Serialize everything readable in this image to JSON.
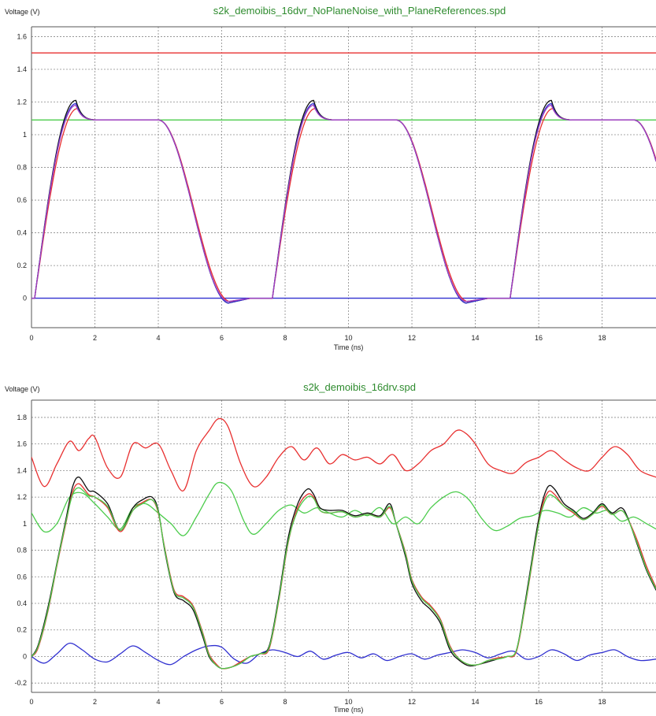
{
  "chart_data": [
    {
      "type": "line",
      "title": "s2k_demoibis_16dvr_NoPlaneNoise_with_PlaneReferences.spd",
      "ylabel": "Voltage (V)",
      "xlabel": "Time (ns)",
      "xlim": [
        0,
        19.7
      ],
      "ylim": [
        -0.18,
        1.66
      ],
      "x_ticks": [
        0,
        2,
        4,
        6,
        8,
        10,
        12,
        14,
        16,
        18
      ],
      "y_ticks": [
        0,
        0.2,
        0.4,
        0.6,
        0.8,
        1,
        1.2,
        1.4,
        1.6
      ],
      "grid": true,
      "series": [
        {
          "color": "#e83030",
          "kind": "flat",
          "level": 1.5
        },
        {
          "color": "#4ccc4c",
          "kind": "flat",
          "level": 1.09
        },
        {
          "color": "#3030d0",
          "kind": "flat",
          "level": 0.0
        },
        {
          "color": "#101010",
          "kind": "pulse",
          "period": 7.5,
          "rise_start": 0.1,
          "peak_t": 1.4,
          "peak": 1.21,
          "high": 1.09,
          "fall_start": 4.0,
          "low_t": 6.2,
          "undershoot": -0.03
        },
        {
          "color": "#e83030",
          "kind": "pulse",
          "period": 7.5,
          "rise_start": 0.1,
          "peak_t": 1.45,
          "peak": 1.16,
          "high": 1.09,
          "fall_start": 4.0,
          "low_t": 6.25,
          "undershoot": -0.02
        },
        {
          "color": "#3030d0",
          "kind": "pulse",
          "period": 7.5,
          "rise_start": 0.1,
          "peak_t": 1.4,
          "peak": 1.19,
          "high": 1.09,
          "fall_start": 4.0,
          "low_t": 6.2,
          "undershoot": -0.03
        },
        {
          "color": "#a040c0",
          "kind": "pulse",
          "period": 7.5,
          "rise_start": 0.1,
          "peak_t": 1.4,
          "peak": 1.18,
          "high": 1.09,
          "fall_start": 4.0,
          "low_t": 6.2,
          "undershoot": -0.02
        }
      ]
    },
    {
      "type": "line",
      "title": "s2k_demoibis_16drv.spd",
      "ylabel": "Voltage (V)",
      "xlabel": "Time (ns)",
      "xlim": [
        0,
        19.7
      ],
      "ylim": [
        -0.27,
        1.93
      ],
      "x_ticks": [
        0,
        2,
        4,
        6,
        8,
        10,
        12,
        14,
        16,
        18
      ],
      "y_ticks": [
        -0.2,
        0,
        0.2,
        0.4,
        0.6,
        0.8,
        1,
        1.2,
        1.4,
        1.6,
        1.8
      ],
      "grid": true,
      "series": [
        {
          "color": "#e83030",
          "kind": "points",
          "x": [
            0,
            0.4,
            0.8,
            1.2,
            1.5,
            1.8,
            2.0,
            2.4,
            2.8,
            3.2,
            3.6,
            4.0,
            4.4,
            4.8,
            5.2,
            5.6,
            5.9,
            6.2,
            6.6,
            7.0,
            7.4,
            7.8,
            8.2,
            8.6,
            9.0,
            9.4,
            9.8,
            10.2,
            10.6,
            11.0,
            11.4,
            11.8,
            12.2,
            12.6,
            13.0,
            13.4,
            13.7,
            14.0,
            14.4,
            14.8,
            15.2,
            15.6,
            16.0,
            16.4,
            16.8,
            17.2,
            17.6,
            18.0,
            18.4,
            18.8,
            19.2,
            19.7
          ],
          "y": [
            1.5,
            1.28,
            1.45,
            1.62,
            1.55,
            1.64,
            1.65,
            1.42,
            1.35,
            1.6,
            1.57,
            1.6,
            1.4,
            1.25,
            1.55,
            1.7,
            1.79,
            1.73,
            1.45,
            1.28,
            1.35,
            1.5,
            1.58,
            1.48,
            1.57,
            1.45,
            1.52,
            1.48,
            1.5,
            1.45,
            1.52,
            1.4,
            1.45,
            1.55,
            1.6,
            1.7,
            1.68,
            1.6,
            1.45,
            1.4,
            1.38,
            1.46,
            1.5,
            1.55,
            1.48,
            1.42,
            1.4,
            1.5,
            1.58,
            1.52,
            1.4,
            1.35
          ]
        },
        {
          "color": "#4ccc4c",
          "kind": "points",
          "x": [
            0,
            0.4,
            0.8,
            1.2,
            1.6,
            2.0,
            2.4,
            2.8,
            3.2,
            3.6,
            4.0,
            4.4,
            4.8,
            5.2,
            5.6,
            5.9,
            6.3,
            6.7,
            7.0,
            7.4,
            7.8,
            8.2,
            8.6,
            9.0,
            9.4,
            9.8,
            10.2,
            10.6,
            11.0,
            11.4,
            11.8,
            12.2,
            12.6,
            13.0,
            13.4,
            13.8,
            14.2,
            14.6,
            15.0,
            15.4,
            15.8,
            16.2,
            16.6,
            17.0,
            17.4,
            17.8,
            18.2,
            18.6,
            19.0,
            19.4,
            19.7
          ],
          "y": [
            1.08,
            0.94,
            1.0,
            1.2,
            1.23,
            1.15,
            1.05,
            0.96,
            1.12,
            1.15,
            1.08,
            1.0,
            0.91,
            1.05,
            1.22,
            1.31,
            1.25,
            1.02,
            0.92,
            1.0,
            1.1,
            1.14,
            1.08,
            1.12,
            1.08,
            1.05,
            1.1,
            1.06,
            1.12,
            1.0,
            1.05,
            1.0,
            1.12,
            1.2,
            1.24,
            1.18,
            1.04,
            0.95,
            0.98,
            1.04,
            1.06,
            1.1,
            1.08,
            1.05,
            1.12,
            1.08,
            1.1,
            1.02,
            1.05,
            1.0,
            0.96
          ]
        },
        {
          "color": "#3030d0",
          "kind": "points",
          "x": [
            0,
            0.4,
            0.8,
            1.2,
            1.6,
            2.0,
            2.4,
            2.8,
            3.2,
            3.6,
            4.0,
            4.4,
            4.8,
            5.2,
            5.6,
            6.0,
            6.4,
            6.8,
            7.2,
            7.6,
            8.0,
            8.4,
            8.8,
            9.2,
            9.6,
            10.0,
            10.4,
            10.8,
            11.2,
            11.6,
            12.0,
            12.4,
            12.8,
            13.2,
            13.6,
            14.0,
            14.4,
            14.8,
            15.2,
            15.6,
            16.0,
            16.4,
            16.8,
            17.2,
            17.6,
            18.0,
            18.4,
            18.8,
            19.2,
            19.7
          ],
          "y": [
            0.0,
            -0.05,
            0.02,
            0.1,
            0.05,
            -0.02,
            -0.04,
            0.02,
            0.08,
            0.03,
            -0.03,
            -0.06,
            0.0,
            0.05,
            0.08,
            0.07,
            -0.02,
            -0.05,
            0.02,
            0.05,
            0.03,
            0.0,
            0.04,
            -0.02,
            0.01,
            0.03,
            -0.01,
            0.02,
            -0.03,
            0.0,
            0.02,
            -0.02,
            0.01,
            0.03,
            0.05,
            0.03,
            -0.01,
            0.02,
            0.04,
            -0.02,
            0.0,
            0.05,
            0.02,
            -0.03,
            0.01,
            0.03,
            0.05,
            0.0,
            -0.03,
            -0.02
          ]
        },
        {
          "color": "#101010",
          "kind": "points",
          "x": [
            0,
            0.2,
            0.5,
            0.8,
            1.1,
            1.3,
            1.5,
            1.8,
            2.0,
            2.4,
            2.8,
            3.2,
            3.5,
            3.8,
            4.0,
            4.2,
            4.5,
            4.8,
            5.1,
            5.4,
            5.6,
            5.8,
            6.0,
            6.3,
            6.6,
            6.9,
            7.2,
            7.5,
            7.8,
            8.1,
            8.4,
            8.7,
            8.9,
            9.1,
            9.4,
            9.8,
            10.2,
            10.6,
            11.0,
            11.3,
            11.5,
            11.8,
            12.0,
            12.3,
            12.6,
            12.9,
            13.2,
            13.5,
            13.8,
            14.1,
            14.4,
            14.7,
            15.0,
            15.3,
            15.6,
            15.9,
            16.1,
            16.3,
            16.5,
            16.8,
            17.1,
            17.4,
            17.7,
            18.0,
            18.3,
            18.6,
            18.8,
            19.1,
            19.4,
            19.7
          ],
          "y": [
            0.0,
            0.08,
            0.35,
            0.7,
            1.05,
            1.28,
            1.35,
            1.25,
            1.24,
            1.15,
            0.95,
            1.12,
            1.18,
            1.2,
            1.1,
            0.8,
            0.48,
            0.42,
            0.35,
            0.15,
            0.0,
            -0.06,
            -0.09,
            -0.08,
            -0.05,
            0.0,
            0.02,
            0.08,
            0.45,
            0.9,
            1.15,
            1.26,
            1.22,
            1.12,
            1.1,
            1.1,
            1.06,
            1.08,
            1.06,
            1.15,
            1.0,
            0.75,
            0.55,
            0.42,
            0.35,
            0.25,
            0.05,
            -0.03,
            -0.07,
            -0.06,
            -0.04,
            -0.02,
            0.0,
            0.05,
            0.45,
            0.9,
            1.15,
            1.28,
            1.26,
            1.15,
            1.1,
            1.04,
            1.08,
            1.15,
            1.08,
            1.12,
            1.05,
            0.85,
            0.65,
            0.5
          ]
        },
        {
          "color": "#e83030",
          "kind": "points",
          "x": [
            0,
            0.2,
            0.5,
            0.8,
            1.1,
            1.3,
            1.5,
            1.8,
            2.0,
            2.4,
            2.8,
            3.2,
            3.5,
            3.8,
            4.0,
            4.2,
            4.5,
            4.8,
            5.1,
            5.4,
            5.6,
            5.8,
            6.0,
            6.3,
            6.6,
            6.9,
            7.2,
            7.5,
            7.8,
            8.1,
            8.4,
            8.7,
            8.9,
            9.1,
            9.4,
            9.8,
            10.2,
            10.6,
            11.0,
            11.3,
            11.5,
            11.8,
            12.0,
            12.3,
            12.6,
            12.9,
            13.2,
            13.5,
            13.8,
            14.1,
            14.4,
            14.7,
            15.0,
            15.3,
            15.6,
            15.9,
            16.1,
            16.3,
            16.5,
            16.8,
            17.1,
            17.4,
            17.7,
            18.0,
            18.3,
            18.6,
            18.8,
            19.1,
            19.4,
            19.7
          ],
          "y": [
            0.0,
            0.06,
            0.32,
            0.68,
            1.02,
            1.24,
            1.3,
            1.22,
            1.2,
            1.12,
            0.94,
            1.1,
            1.16,
            1.18,
            1.08,
            0.82,
            0.5,
            0.45,
            0.38,
            0.18,
            0.02,
            -0.05,
            -0.09,
            -0.08,
            -0.04,
            0.0,
            0.02,
            0.06,
            0.42,
            0.86,
            1.12,
            1.22,
            1.2,
            1.1,
            1.08,
            1.09,
            1.05,
            1.07,
            1.05,
            1.12,
            1.0,
            0.78,
            0.58,
            0.45,
            0.38,
            0.28,
            0.08,
            -0.02,
            -0.06,
            -0.06,
            -0.03,
            -0.01,
            0.0,
            0.04,
            0.42,
            0.86,
            1.12,
            1.24,
            1.22,
            1.13,
            1.08,
            1.03,
            1.07,
            1.13,
            1.07,
            1.1,
            1.04,
            0.88,
            0.68,
            0.52
          ]
        },
        {
          "color": "#4ccc4c",
          "kind": "points",
          "x": [
            0,
            0.2,
            0.5,
            0.8,
            1.1,
            1.3,
            1.5,
            1.8,
            2.0,
            2.4,
            2.8,
            3.2,
            3.5,
            3.8,
            4.0,
            4.2,
            4.5,
            4.8,
            5.1,
            5.4,
            5.6,
            5.8,
            6.0,
            6.3,
            6.6,
            6.9,
            7.2,
            7.5,
            7.8,
            8.1,
            8.4,
            8.7,
            8.9,
            9.1,
            9.4,
            9.8,
            10.2,
            10.6,
            11.0,
            11.3,
            11.5,
            11.8,
            12.0,
            12.3,
            12.6,
            12.9,
            13.2,
            13.5,
            13.8,
            14.1,
            14.4,
            14.7,
            15.0,
            15.3,
            15.6,
            15.9,
            16.1,
            16.3,
            16.5,
            16.8,
            17.1,
            17.4,
            17.7,
            18.0,
            18.3,
            18.6,
            18.8,
            19.1,
            19.4,
            19.7
          ],
          "y": [
            0.0,
            0.07,
            0.33,
            0.69,
            1.03,
            1.22,
            1.27,
            1.21,
            1.2,
            1.13,
            0.95,
            1.1,
            1.15,
            1.18,
            1.09,
            0.81,
            0.49,
            0.44,
            0.37,
            0.17,
            0.01,
            -0.06,
            -0.09,
            -0.08,
            -0.05,
            0.0,
            0.02,
            0.07,
            0.43,
            0.87,
            1.1,
            1.2,
            1.19,
            1.1,
            1.08,
            1.09,
            1.05,
            1.07,
            1.05,
            1.13,
            1.0,
            0.77,
            0.57,
            0.44,
            0.37,
            0.27,
            0.07,
            -0.02,
            -0.06,
            -0.06,
            -0.03,
            -0.02,
            0.0,
            0.05,
            0.43,
            0.87,
            1.1,
            1.21,
            1.2,
            1.13,
            1.09,
            1.03,
            1.07,
            1.14,
            1.07,
            1.1,
            1.04,
            0.86,
            0.66,
            0.51
          ]
        }
      ]
    }
  ]
}
